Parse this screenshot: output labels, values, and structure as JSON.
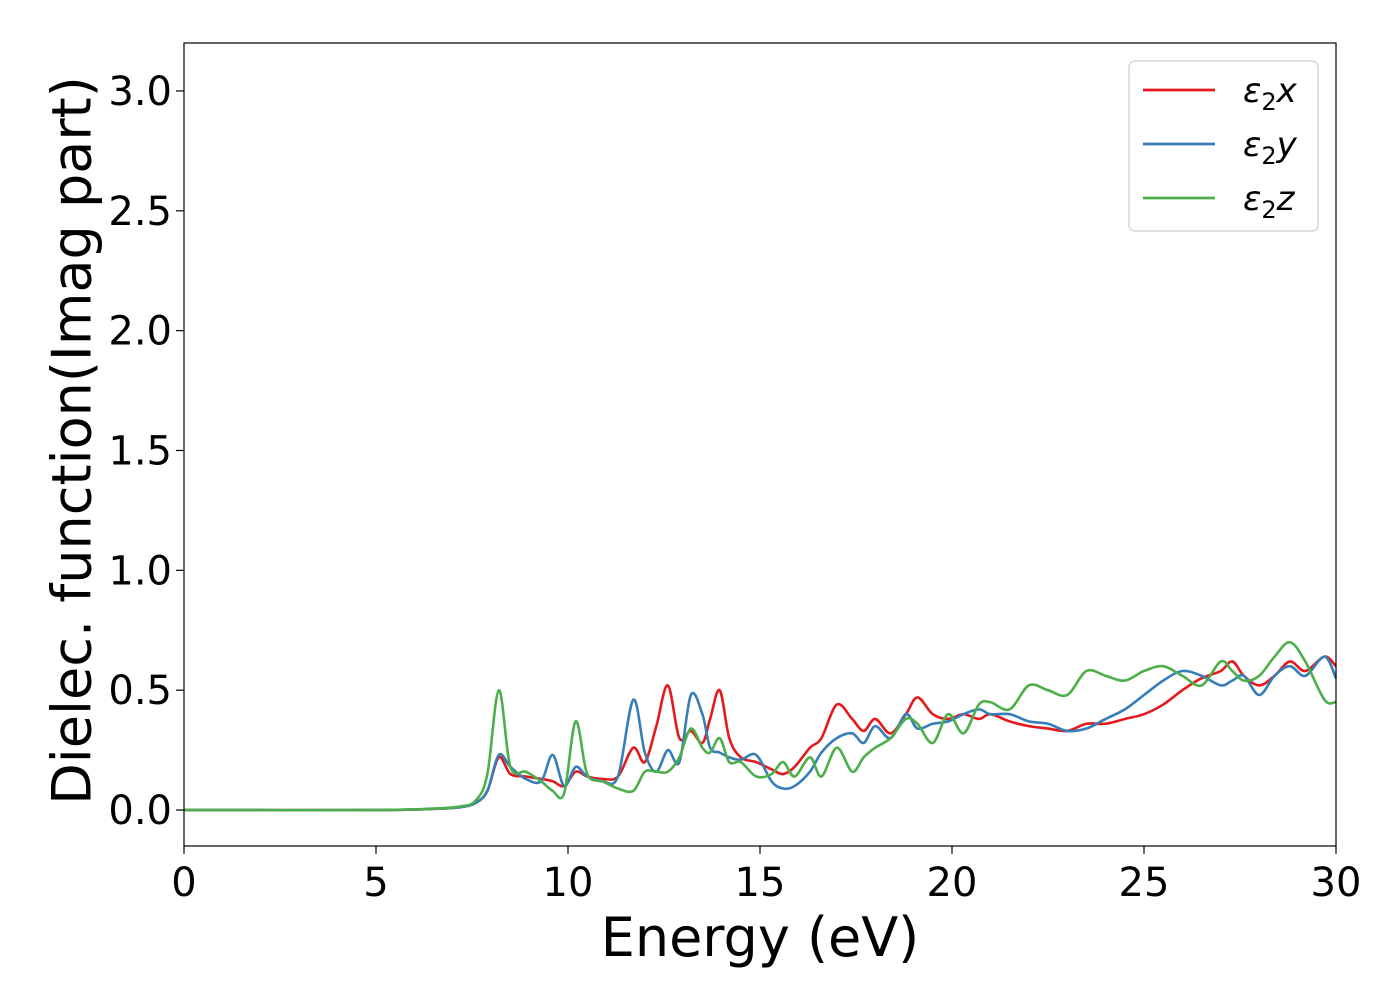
{
  "chart_data": {
    "type": "line",
    "title": "",
    "xlabel": "Energy (eV)",
    "ylabel": "Dielec. function(Imag part)",
    "xlim": [
      0,
      30
    ],
    "ylim": [
      -0.15,
      3.2
    ],
    "xticks": [
      0,
      5,
      10,
      15,
      20,
      25,
      30
    ],
    "yticks": [
      0.0,
      0.5,
      1.0,
      1.5,
      2.0,
      2.5,
      3.0
    ],
    "xtick_labels": [
      "0",
      "5",
      "10",
      "15",
      "20",
      "25",
      "30"
    ],
    "ytick_labels": [
      "0.0",
      "0.5",
      "1.0",
      "1.5",
      "2.0",
      "2.5",
      "3.0"
    ],
    "grid": false,
    "legend_position": "top-right",
    "series": [
      {
        "name": "ε₂x",
        "label_base": "ε",
        "label_sub": "2",
        "label_suffix": "x",
        "color": "#e41a1c",
        "x": [
          0,
          5,
          6.5,
          7.2,
          7.6,
          7.9,
          8.2,
          8.5,
          8.9,
          9.3,
          9.6,
          9.9,
          10.2,
          10.5,
          10.9,
          11.3,
          11.7,
          12.0,
          12.3,
          12.6,
          12.9,
          13.2,
          13.5,
          13.7,
          13.95,
          14.2,
          14.5,
          14.9,
          15.3,
          15.6,
          15.9,
          16.3,
          16.6,
          17.0,
          17.4,
          17.7,
          18.0,
          18.4,
          18.8,
          19.1,
          19.5,
          19.9,
          20.3,
          20.7,
          21.0,
          21.5,
          22.0,
          22.5,
          23.0,
          23.5,
          24.0,
          24.5,
          25.0,
          25.5,
          26.0,
          26.5,
          27.0,
          27.3,
          27.6,
          28.0,
          28.4,
          28.8,
          29.2,
          29.7,
          30.0
        ],
        "y": [
          0.0,
          0.0,
          0.005,
          0.012,
          0.03,
          0.08,
          0.22,
          0.15,
          0.14,
          0.13,
          0.12,
          0.1,
          0.16,
          0.14,
          0.13,
          0.14,
          0.26,
          0.2,
          0.35,
          0.52,
          0.3,
          0.33,
          0.28,
          0.38,
          0.5,
          0.3,
          0.22,
          0.2,
          0.17,
          0.15,
          0.18,
          0.26,
          0.3,
          0.44,
          0.38,
          0.33,
          0.38,
          0.32,
          0.4,
          0.47,
          0.4,
          0.38,
          0.4,
          0.38,
          0.4,
          0.37,
          0.35,
          0.34,
          0.33,
          0.36,
          0.36,
          0.38,
          0.4,
          0.44,
          0.5,
          0.55,
          0.58,
          0.62,
          0.56,
          0.52,
          0.56,
          0.62,
          0.58,
          0.64,
          0.6
        ]
      },
      {
        "name": "ε₂y",
        "label_base": "ε",
        "label_sub": "2",
        "label_suffix": "y",
        "color": "#377eb8",
        "x": [
          0,
          5,
          6.5,
          7.2,
          7.6,
          7.9,
          8.2,
          8.5,
          8.9,
          9.3,
          9.6,
          9.9,
          10.2,
          10.5,
          10.9,
          11.3,
          11.7,
          12.0,
          12.3,
          12.6,
          12.9,
          13.2,
          13.5,
          13.7,
          13.95,
          14.2,
          14.5,
          14.9,
          15.3,
          15.6,
          15.9,
          16.3,
          16.6,
          17.0,
          17.4,
          17.7,
          18.0,
          18.4,
          18.8,
          19.1,
          19.5,
          19.9,
          20.3,
          20.7,
          21.0,
          21.5,
          22.0,
          22.5,
          23.0,
          23.5,
          24.0,
          24.5,
          25.0,
          25.5,
          26.0,
          26.5,
          27.0,
          27.3,
          27.6,
          28.0,
          28.4,
          28.8,
          29.2,
          29.7,
          30.0
        ],
        "y": [
          0.0,
          0.0,
          0.005,
          0.012,
          0.03,
          0.08,
          0.23,
          0.18,
          0.13,
          0.12,
          0.23,
          0.1,
          0.18,
          0.14,
          0.12,
          0.14,
          0.46,
          0.24,
          0.16,
          0.25,
          0.2,
          0.48,
          0.4,
          0.26,
          0.24,
          0.22,
          0.21,
          0.23,
          0.12,
          0.09,
          0.1,
          0.16,
          0.24,
          0.3,
          0.32,
          0.28,
          0.35,
          0.3,
          0.4,
          0.34,
          0.36,
          0.37,
          0.4,
          0.42,
          0.4,
          0.4,
          0.37,
          0.36,
          0.33,
          0.34,
          0.38,
          0.42,
          0.48,
          0.54,
          0.58,
          0.56,
          0.52,
          0.54,
          0.56,
          0.48,
          0.56,
          0.6,
          0.56,
          0.64,
          0.55
        ]
      },
      {
        "name": "ε₂z",
        "label_base": "ε",
        "label_sub": "2",
        "label_suffix": "z",
        "color": "#4daf4a",
        "x": [
          0,
          5,
          6.5,
          7.2,
          7.6,
          7.9,
          8.2,
          8.5,
          8.9,
          9.3,
          9.6,
          9.9,
          10.2,
          10.5,
          10.9,
          11.3,
          11.7,
          12.0,
          12.3,
          12.6,
          12.9,
          13.2,
          13.5,
          13.7,
          13.95,
          14.2,
          14.5,
          14.9,
          15.3,
          15.6,
          15.9,
          16.3,
          16.6,
          17.0,
          17.4,
          17.7,
          18.0,
          18.4,
          18.8,
          19.1,
          19.5,
          19.9,
          20.3,
          20.7,
          21.0,
          21.5,
          22.0,
          22.5,
          23.0,
          23.5,
          24.0,
          24.5,
          25.0,
          25.5,
          26.0,
          26.5,
          27.0,
          27.3,
          27.6,
          28.0,
          28.4,
          28.8,
          29.2,
          29.7,
          30.0
        ],
        "y": [
          0.0,
          0.0,
          0.006,
          0.015,
          0.04,
          0.15,
          0.5,
          0.18,
          0.16,
          0.12,
          0.08,
          0.07,
          0.37,
          0.15,
          0.12,
          0.09,
          0.08,
          0.16,
          0.16,
          0.16,
          0.22,
          0.34,
          0.26,
          0.24,
          0.3,
          0.2,
          0.2,
          0.14,
          0.15,
          0.2,
          0.14,
          0.22,
          0.14,
          0.26,
          0.16,
          0.22,
          0.26,
          0.3,
          0.38,
          0.36,
          0.28,
          0.4,
          0.32,
          0.44,
          0.45,
          0.42,
          0.52,
          0.5,
          0.48,
          0.58,
          0.56,
          0.54,
          0.58,
          0.6,
          0.56,
          0.52,
          0.62,
          0.58,
          0.54,
          0.56,
          0.64,
          0.7,
          0.62,
          0.46,
          0.45
        ]
      }
    ]
  }
}
